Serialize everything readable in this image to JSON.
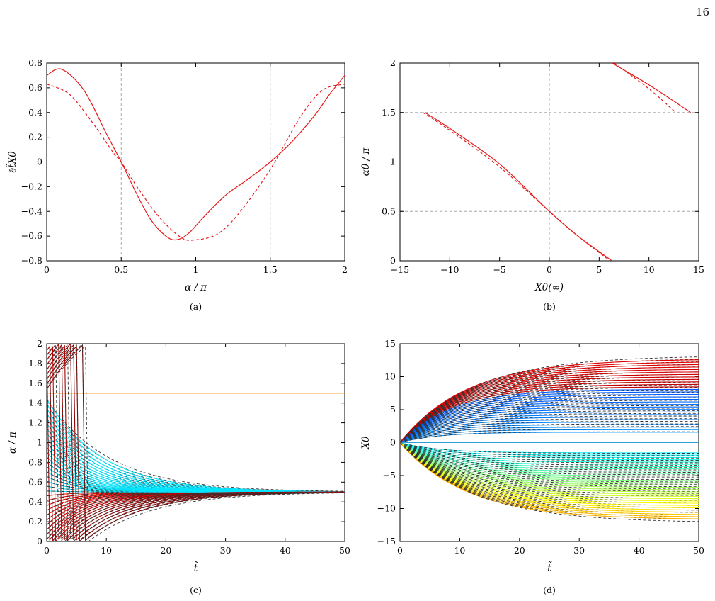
{
  "page_number": "16",
  "chart_data": [
    {
      "panel": "a",
      "caption": "(a)",
      "type": "line",
      "xlabel": "α / π",
      "ylabel": "∂t̃X0",
      "xlim": [
        0,
        2
      ],
      "ylim": [
        -0.8,
        0.8
      ],
      "xticks": [
        "0",
        "0.5",
        "1",
        "1.5",
        "2"
      ],
      "yticks": [
        "−0.8",
        "−0.6",
        "−0.4",
        "−0.2",
        "0",
        "0.2",
        "0.4",
        "0.6",
        "0.8"
      ],
      "reference_lines": {
        "x": [
          0.5,
          1.5
        ],
        "y": [
          0
        ]
      },
      "series": [
        {
          "style": "solid",
          "color": "#e41a1c",
          "x": [
            0,
            0.1,
            0.25,
            0.4,
            0.5,
            0.6,
            0.7,
            0.8,
            0.87,
            0.95,
            1.05,
            1.2,
            1.35,
            1.5,
            1.65,
            1.8,
            1.9,
            2.0
          ],
          "y": [
            0.7,
            0.75,
            0.58,
            0.23,
            0.0,
            -0.25,
            -0.47,
            -0.6,
            -0.63,
            -0.58,
            -0.45,
            -0.27,
            -0.14,
            0.0,
            0.17,
            0.38,
            0.55,
            0.7
          ]
        },
        {
          "style": "dashed",
          "color": "#e41a1c",
          "x": [
            0,
            0.15,
            0.3,
            0.45,
            0.5,
            0.6,
            0.75,
            0.9,
            1.0,
            1.15,
            1.3,
            1.5,
            1.7,
            1.85,
            2.0
          ],
          "y": [
            0.63,
            0.55,
            0.33,
            0.07,
            0.0,
            -0.19,
            -0.44,
            -0.61,
            -0.63,
            -0.58,
            -0.4,
            -0.06,
            0.36,
            0.58,
            0.63
          ]
        }
      ]
    },
    {
      "panel": "b",
      "caption": "(b)",
      "type": "line",
      "xlabel": "X0(∞)",
      "ylabel": "α0 / π",
      "xlim": [
        -15,
        15
      ],
      "ylim": [
        0,
        2
      ],
      "xticks": [
        "−15",
        "−10",
        "−5",
        "0",
        "5",
        "10",
        "15"
      ],
      "yticks": [
        "0",
        "0.5",
        "1",
        "1.5",
        "2"
      ],
      "reference_lines": {
        "x": [
          0
        ],
        "y": [
          0.5,
          1.5
        ]
      },
      "series": [
        {
          "style": "solid",
          "color": "#e41a1c",
          "segments": [
            {
              "x": [
                -12.5,
                -10,
                -5,
                0,
                3,
                6.3
              ],
              "y": [
                1.5,
                1.34,
                0.98,
                0.5,
                0.24,
                0.0
              ]
            },
            {
              "x": [
                6.3,
                10,
                14.2
              ],
              "y": [
                2.0,
                1.78,
                1.5
              ]
            }
          ]
        },
        {
          "style": "dashed",
          "color": "#e41a1c",
          "segments": [
            {
              "x": [
                -12.7,
                -10,
                -5,
                0,
                3,
                6.1
              ],
              "y": [
                1.5,
                1.32,
                0.95,
                0.5,
                0.24,
                0.0
              ]
            },
            {
              "x": [
                6.5,
                10,
                12.7
              ],
              "y": [
                2.0,
                1.74,
                1.5
              ]
            }
          ]
        }
      ]
    },
    {
      "panel": "c",
      "caption": "(c)",
      "type": "line",
      "xlabel": "t̃",
      "ylabel": "α / π",
      "xlim": [
        0,
        50
      ],
      "ylim": [
        0,
        2
      ],
      "xticks": [
        "0",
        "10",
        "20",
        "30",
        "40",
        "50"
      ],
      "yticks": [
        "0",
        "0.2",
        "0.4",
        "0.6",
        "0.8",
        "1",
        "1.2",
        "1.4",
        "1.6",
        "1.8",
        "2"
      ],
      "description": "family of trajectories α(t̃) for initial values α0 in [0, 2]; solid = full model, dashed = approximation; all converge to 0.5 except the separatrix at 1.5",
      "colormap": "jet"
    },
    {
      "panel": "d",
      "caption": "(d)",
      "type": "line",
      "xlabel": "t̃",
      "ylabel": "X0",
      "xlim": [
        0,
        50
      ],
      "ylim": [
        -15,
        15
      ],
      "xticks": [
        "0",
        "10",
        "20",
        "30",
        "40",
        "50"
      ],
      "yticks": [
        "−15",
        "−10",
        "−5",
        "0",
        "5",
        "10",
        "15"
      ],
      "description": "family of trajectories X0(t̃) starting at 0 and saturating at values between about −12 and 13.5",
      "colormap": "jet"
    }
  ]
}
